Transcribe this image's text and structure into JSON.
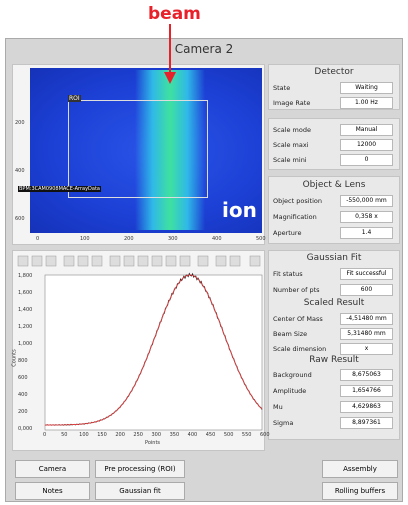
{
  "annotations": {
    "beam": "beam",
    "ion": "ion"
  },
  "window": {
    "title": "Camera 2"
  },
  "image": {
    "roi_label": "ROI",
    "source": "BPM:3CAM0908MACE-ArrayData",
    "xticks": [
      "0",
      "100",
      "200",
      "300",
      "400",
      "500"
    ],
    "yticks": [
      "200",
      "400",
      "600"
    ]
  },
  "detector": {
    "title": "Detector",
    "rows": [
      [
        "State",
        "Waiting"
      ],
      [
        "Image Rate",
        "1.00 Hz"
      ]
    ]
  },
  "scale": {
    "rows": [
      [
        "Scale mode",
        "Manual"
      ],
      [
        "Scale maxi",
        "12000"
      ],
      [
        "Scale mini",
        "0"
      ]
    ]
  },
  "lens": {
    "title": "Object & Lens",
    "rows": [
      [
        "Object position",
        "-550,000 mm"
      ],
      [
        "Magnification",
        "0,358 x"
      ],
      [
        "Aperture",
        "1.4"
      ]
    ]
  },
  "fit": {
    "title": "Gaussian Fit",
    "rows": [
      [
        "Fit status",
        "Fit successful"
      ],
      [
        "Number of pts",
        "600"
      ]
    ],
    "scaled_title": "Scaled Result",
    "scaled_rows": [
      [
        "Center Of Mass",
        "-4,51480 mm"
      ],
      [
        "Beam Size",
        "5,31480 mm"
      ],
      [
        "Scale dimension",
        "x"
      ]
    ],
    "raw_title": "Raw Result",
    "raw_rows": [
      [
        "Background",
        "8,675063"
      ],
      [
        "Amplitude",
        "1,654766"
      ],
      [
        "Mu",
        "4,629863"
      ],
      [
        "Sigma",
        "8,897361"
      ]
    ]
  },
  "plot": {
    "xlabel": "Points",
    "ylabel": "Counts",
    "xticks": [
      "0",
      "50",
      "100",
      "150",
      "200",
      "250",
      "300",
      "350",
      "400",
      "450",
      "500",
      "550",
      "600"
    ],
    "yticks": [
      "1,800",
      "1,600",
      "1,400",
      "1,200",
      "1,000",
      "800",
      "600",
      "400",
      "200",
      "0,000"
    ]
  },
  "buttons": [
    "Camera",
    "Pre processing (ROI)",
    "Assembly",
    "Notes",
    "Gaussian fit",
    "Rolling buffers"
  ]
}
